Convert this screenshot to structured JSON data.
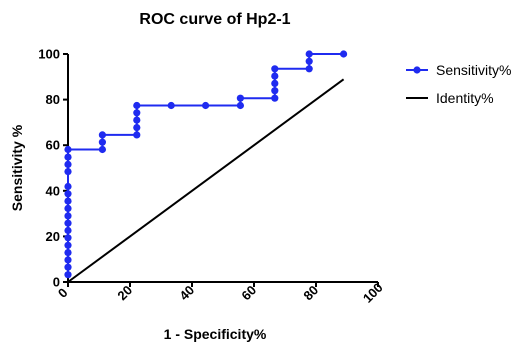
{
  "chart_data": {
    "type": "line",
    "title": "ROC curve of Hp2-1",
    "xlabel": "1 - Specificity%",
    "ylabel": "Sensitivity %",
    "xlim": [
      0,
      100
    ],
    "ylim": [
      0,
      100
    ],
    "x_ticks": [
      0,
      20,
      40,
      60,
      80,
      100
    ],
    "y_ticks": [
      0,
      20,
      40,
      60,
      80,
      100
    ],
    "grid": false,
    "legend_position": "right",
    "series": [
      {
        "name": "Sensitivity%",
        "color": "#1f2bf0",
        "marker": "circle",
        "points": [
          [
            0,
            3.2
          ],
          [
            0,
            6.5
          ],
          [
            0,
            9.7
          ],
          [
            0,
            12.9
          ],
          [
            0,
            16.1
          ],
          [
            0,
            19.4
          ],
          [
            0,
            22.6
          ],
          [
            0,
            25.8
          ],
          [
            0,
            29.0
          ],
          [
            0,
            32.3
          ],
          [
            0,
            35.5
          ],
          [
            0,
            38.7
          ],
          [
            0,
            41.9
          ],
          [
            0,
            48.4
          ],
          [
            0,
            51.6
          ],
          [
            0,
            54.8
          ],
          [
            0,
            58.1
          ],
          [
            11.1,
            58.1
          ],
          [
            11.1,
            61.3
          ],
          [
            11.1,
            64.5
          ],
          [
            22.2,
            64.5
          ],
          [
            22.2,
            67.7
          ],
          [
            22.2,
            71.0
          ],
          [
            22.2,
            74.2
          ],
          [
            22.2,
            77.4
          ],
          [
            33.3,
            77.4
          ],
          [
            44.4,
            77.4
          ],
          [
            55.6,
            77.4
          ],
          [
            55.6,
            80.6
          ],
          [
            66.7,
            80.6
          ],
          [
            66.7,
            83.9
          ],
          [
            66.7,
            87.1
          ],
          [
            66.7,
            90.3
          ],
          [
            66.7,
            93.5
          ],
          [
            77.8,
            93.5
          ],
          [
            77.8,
            96.8
          ],
          [
            77.8,
            100
          ],
          [
            88.9,
            100
          ]
        ]
      },
      {
        "name": "Identity%",
        "color": "#000000",
        "marker": "none",
        "points": [
          [
            0,
            0
          ],
          [
            88.9,
            88.9
          ]
        ]
      }
    ]
  }
}
